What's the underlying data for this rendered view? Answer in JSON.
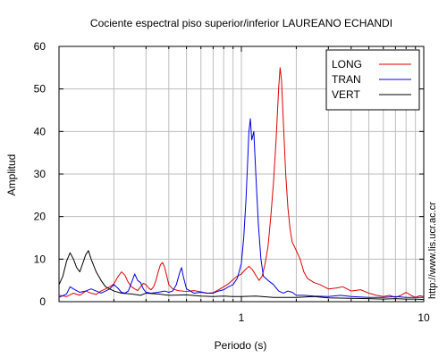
{
  "chart_data": {
    "type": "line",
    "title": "Cociente espectral piso superior/inferior LAUREANO ECHANDI",
    "xlabel": "Periodo (s)",
    "ylabel": "Amplitud",
    "xscale": "log",
    "xlim": [
      0.1,
      10
    ],
    "ylim": [
      0,
      60
    ],
    "xticks": [
      {
        "value": 1,
        "label": "1"
      },
      {
        "value": 10,
        "label": "10"
      }
    ],
    "yticks": [
      0,
      10,
      20,
      30,
      40,
      50,
      60
    ],
    "grid": true,
    "legend_position": "top-right",
    "series": [
      {
        "name": "LONG",
        "color": "#e00000",
        "points": [
          [
            0.1,
            1.5
          ],
          [
            0.11,
            1.2
          ],
          [
            0.12,
            2.0
          ],
          [
            0.13,
            1.5
          ],
          [
            0.14,
            2.5
          ],
          [
            0.15,
            2.0
          ],
          [
            0.16,
            1.7
          ],
          [
            0.17,
            2.5
          ],
          [
            0.18,
            3.0
          ],
          [
            0.19,
            3.5
          ],
          [
            0.2,
            4.2
          ],
          [
            0.21,
            5.8
          ],
          [
            0.22,
            7.0
          ],
          [
            0.23,
            6.2
          ],
          [
            0.24,
            4.5
          ],
          [
            0.25,
            3.5
          ],
          [
            0.26,
            3.0
          ],
          [
            0.27,
            2.6
          ],
          [
            0.28,
            3.5
          ],
          [
            0.29,
            4.3
          ],
          [
            0.3,
            4.0
          ],
          [
            0.31,
            3.2
          ],
          [
            0.32,
            2.8
          ],
          [
            0.33,
            3.5
          ],
          [
            0.34,
            5.0
          ],
          [
            0.35,
            7.0
          ],
          [
            0.36,
            8.7
          ],
          [
            0.37,
            9.2
          ],
          [
            0.38,
            8.0
          ],
          [
            0.39,
            6.0
          ],
          [
            0.4,
            4.0
          ],
          [
            0.42,
            3.0
          ],
          [
            0.45,
            2.6
          ],
          [
            0.5,
            2.4
          ],
          [
            0.55,
            2.6
          ],
          [
            0.6,
            2.3
          ],
          [
            0.65,
            2.0
          ],
          [
            0.7,
            2.1
          ],
          [
            0.75,
            2.8
          ],
          [
            0.8,
            3.5
          ],
          [
            0.85,
            4.2
          ],
          [
            0.9,
            5.2
          ],
          [
            0.95,
            6.0
          ],
          [
            1.0,
            6.5
          ],
          [
            1.05,
            7.5
          ],
          [
            1.1,
            8.3
          ],
          [
            1.15,
            7.5
          ],
          [
            1.2,
            6.2
          ],
          [
            1.25,
            5.0
          ],
          [
            1.3,
            6.0
          ],
          [
            1.35,
            9.0
          ],
          [
            1.4,
            13.0
          ],
          [
            1.45,
            20.0
          ],
          [
            1.5,
            28.0
          ],
          [
            1.55,
            38.0
          ],
          [
            1.6,
            50.0
          ],
          [
            1.63,
            55.0
          ],
          [
            1.66,
            52.0
          ],
          [
            1.7,
            42.0
          ],
          [
            1.75,
            30.0
          ],
          [
            1.8,
            22.0
          ],
          [
            1.85,
            17.0
          ],
          [
            1.9,
            14.0
          ],
          [
            1.95,
            13.0
          ],
          [
            2.0,
            12.0
          ],
          [
            2.1,
            10.0
          ],
          [
            2.2,
            7.0
          ],
          [
            2.3,
            5.5
          ],
          [
            2.5,
            4.5
          ],
          [
            2.7,
            4.0
          ],
          [
            3.0,
            3.0
          ],
          [
            3.3,
            3.2
          ],
          [
            3.6,
            3.5
          ],
          [
            4.0,
            2.5
          ],
          [
            4.5,
            2.8
          ],
          [
            5.0,
            2.0
          ],
          [
            5.5,
            1.5
          ],
          [
            6.0,
            1.2
          ],
          [
            6.5,
            1.5
          ],
          [
            7.0,
            1.0
          ],
          [
            7.5,
            1.5
          ],
          [
            8.0,
            2.2
          ],
          [
            8.5,
            1.5
          ],
          [
            9.0,
            1.0
          ],
          [
            9.5,
            1.4
          ],
          [
            10.0,
            1.2
          ]
        ]
      },
      {
        "name": "TRAN",
        "color": "#0000e0",
        "points": [
          [
            0.1,
            1.0
          ],
          [
            0.11,
            1.8
          ],
          [
            0.115,
            3.5
          ],
          [
            0.12,
            3.0
          ],
          [
            0.13,
            2.2
          ],
          [
            0.14,
            2.5
          ],
          [
            0.15,
            3.0
          ],
          [
            0.16,
            2.5
          ],
          [
            0.17,
            2.0
          ],
          [
            0.18,
            2.5
          ],
          [
            0.19,
            3.0
          ],
          [
            0.2,
            4.0
          ],
          [
            0.21,
            3.2
          ],
          [
            0.22,
            2.2
          ],
          [
            0.23,
            2.0
          ],
          [
            0.24,
            2.5
          ],
          [
            0.25,
            4.5
          ],
          [
            0.26,
            6.5
          ],
          [
            0.27,
            5.0
          ],
          [
            0.28,
            4.5
          ],
          [
            0.29,
            3.0
          ],
          [
            0.3,
            2.2
          ],
          [
            0.32,
            2.0
          ],
          [
            0.35,
            2.2
          ],
          [
            0.38,
            2.5
          ],
          [
            0.4,
            2.2
          ],
          [
            0.42,
            2.5
          ],
          [
            0.44,
            4.0
          ],
          [
            0.46,
            7.0
          ],
          [
            0.47,
            8.0
          ],
          [
            0.48,
            6.0
          ],
          [
            0.5,
            3.0
          ],
          [
            0.55,
            2.0
          ],
          [
            0.6,
            2.2
          ],
          [
            0.65,
            2.0
          ],
          [
            0.7,
            2.0
          ],
          [
            0.75,
            2.5
          ],
          [
            0.8,
            2.8
          ],
          [
            0.85,
            3.5
          ],
          [
            0.9,
            4.0
          ],
          [
            0.95,
            5.5
          ],
          [
            1.0,
            9.0
          ],
          [
            1.03,
            15.0
          ],
          [
            1.06,
            24.0
          ],
          [
            1.08,
            32.0
          ],
          [
            1.1,
            40.0
          ],
          [
            1.12,
            43.0
          ],
          [
            1.14,
            38.0
          ],
          [
            1.17,
            40.0
          ],
          [
            1.2,
            30.0
          ],
          [
            1.24,
            18.0
          ],
          [
            1.28,
            10.0
          ],
          [
            1.32,
            6.0
          ],
          [
            1.4,
            5.0
          ],
          [
            1.5,
            4.0
          ],
          [
            1.6,
            2.5
          ],
          [
            1.7,
            2.0
          ],
          [
            1.8,
            2.5
          ],
          [
            1.9,
            2.2
          ],
          [
            2.0,
            1.5
          ],
          [
            2.2,
            1.5
          ],
          [
            2.5,
            1.3
          ],
          [
            3.0,
            1.2
          ],
          [
            3.5,
            1.5
          ],
          [
            4.0,
            1.2
          ],
          [
            5.0,
            1.0
          ],
          [
            6.0,
            1.0
          ],
          [
            7.0,
            1.2
          ],
          [
            8.0,
            1.0
          ],
          [
            9.0,
            1.0
          ],
          [
            10.0,
            1.0
          ]
        ]
      },
      {
        "name": "VERT",
        "color": "#000000",
        "points": [
          [
            0.1,
            4.0
          ],
          [
            0.105,
            6.0
          ],
          [
            0.11,
            9.5
          ],
          [
            0.115,
            11.5
          ],
          [
            0.12,
            10.0
          ],
          [
            0.125,
            8.0
          ],
          [
            0.13,
            7.0
          ],
          [
            0.135,
            9.0
          ],
          [
            0.14,
            11.0
          ],
          [
            0.145,
            12.0
          ],
          [
            0.15,
            10.0
          ],
          [
            0.16,
            7.0
          ],
          [
            0.17,
            5.0
          ],
          [
            0.18,
            3.5
          ],
          [
            0.2,
            2.5
          ],
          [
            0.22,
            2.0
          ],
          [
            0.25,
            1.8
          ],
          [
            0.28,
            1.5
          ],
          [
            0.3,
            2.0
          ],
          [
            0.35,
            1.8
          ],
          [
            0.4,
            1.5
          ],
          [
            0.5,
            1.6
          ],
          [
            0.6,
            1.3
          ],
          [
            0.7,
            1.2
          ],
          [
            0.8,
            1.3
          ],
          [
            0.9,
            1.2
          ],
          [
            1.0,
            1.2
          ],
          [
            1.2,
            1.3
          ],
          [
            1.5,
            1.0
          ],
          [
            2.0,
            1.0
          ],
          [
            2.5,
            1.2
          ],
          [
            3.0,
            0.9
          ],
          [
            4.0,
            0.8
          ],
          [
            5.0,
            0.7
          ],
          [
            6.0,
            0.6
          ],
          [
            7.0,
            0.7
          ],
          [
            8.0,
            0.6
          ],
          [
            9.0,
            0.6
          ],
          [
            10.0,
            0.5
          ]
        ]
      }
    ]
  },
  "side_note": "http://www.lis.ucr.ac.cr"
}
